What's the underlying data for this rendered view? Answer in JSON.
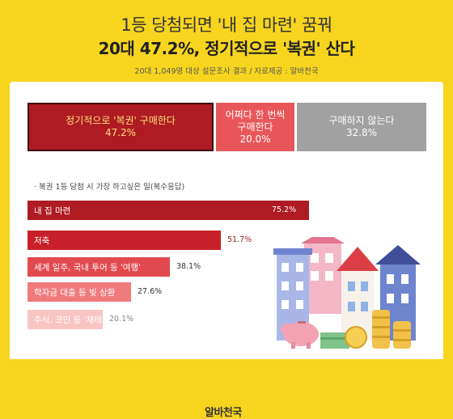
{
  "header": {
    "title_line1": "1등 당첨되면 '내 집 마련' 꿈꿔",
    "title_line2": "20대 47.2%, 정기적으로 '복권' 산다",
    "source": "20대 1,049명 대상 설문조사 결과 / 자료제공 : 알바천국"
  },
  "chart_data": [
    {
      "type": "bar",
      "orientation": "horizontal-stacked",
      "categories": [
        "정기적으로 '복권' 구매한다",
        "어쩌다 한 번씩 구매한다",
        "구매하지 않는다"
      ],
      "values": [
        47.2,
        20.0,
        32.8
      ],
      "value_labels": [
        "47.2%",
        "20.0%",
        "32.8%"
      ],
      "unit": "%",
      "colors": [
        "#ae1b23",
        "#e9565a",
        "#a1a1a1"
      ]
    },
    {
      "type": "bar",
      "orientation": "horizontal",
      "title": "· 복권 1등 당첨 시 가장 하고싶은 일(복수응답)",
      "categories": [
        "내 집 마련",
        "저축",
        "세계 일주, 국내 투어 등 '여행'",
        "학자금 대출 등 빚 상환",
        "주식, 코인 등 '재테크'"
      ],
      "values": [
        75.2,
        51.7,
        38.1,
        27.6,
        20.1
      ],
      "value_labels": [
        "75.2%",
        "51.7%",
        "38.1%",
        "27.6%",
        "20.1%"
      ],
      "unit": "%",
      "colors": [
        "#ae1b23",
        "#c8202a",
        "#e24a4f",
        "#ef7a7c",
        "#f8c4c4"
      ]
    }
  ],
  "logo": {
    "text": "알바천국"
  }
}
